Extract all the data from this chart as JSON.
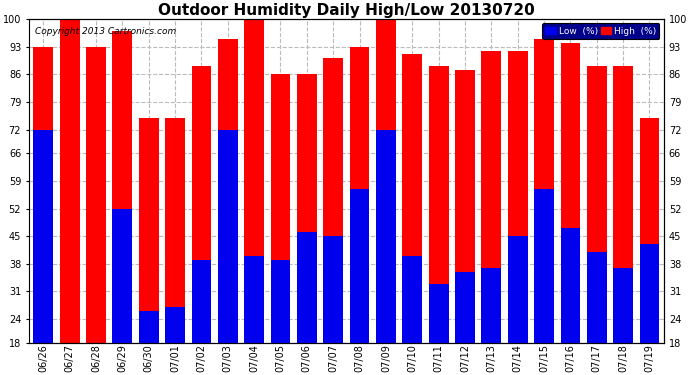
{
  "title": "Outdoor Humidity Daily High/Low 20130720",
  "copyright": "Copyright 2013 Cartronics.com",
  "categories": [
    "06/26",
    "06/27",
    "06/28",
    "06/29",
    "06/30",
    "07/01",
    "07/02",
    "07/03",
    "07/04",
    "07/05",
    "07/06",
    "07/07",
    "07/08",
    "07/09",
    "07/10",
    "07/11",
    "07/12",
    "07/13",
    "07/14",
    "07/15",
    "07/16",
    "07/17",
    "07/18",
    "07/19"
  ],
  "high_values": [
    93,
    100,
    93,
    97,
    75,
    75,
    88,
    95,
    100,
    86,
    86,
    90,
    93,
    100,
    91,
    88,
    87,
    92,
    92,
    95,
    94,
    88,
    88,
    75
  ],
  "low_values": [
    72,
    18,
    18,
    52,
    26,
    27,
    39,
    72,
    40,
    39,
    46,
    45,
    57,
    72,
    40,
    33,
    36,
    37,
    45,
    57,
    47,
    41,
    37,
    43
  ],
  "high_color": "#ff0000",
  "low_color": "#0000ee",
  "bg_color": "#ffffff",
  "grid_color": "#bbbbbb",
  "ylim_min": 18,
  "ylim_max": 100,
  "yticks": [
    18,
    24,
    31,
    38,
    45,
    52,
    59,
    66,
    72,
    79,
    86,
    93,
    100
  ],
  "title_fontsize": 11,
  "copyright_fontsize": 6.5,
  "legend_label_low": "Low  (%)",
  "legend_label_high": "High  (%)",
  "bar_width": 0.75,
  "figwidth": 6.9,
  "figheight": 3.75,
  "dpi": 100
}
